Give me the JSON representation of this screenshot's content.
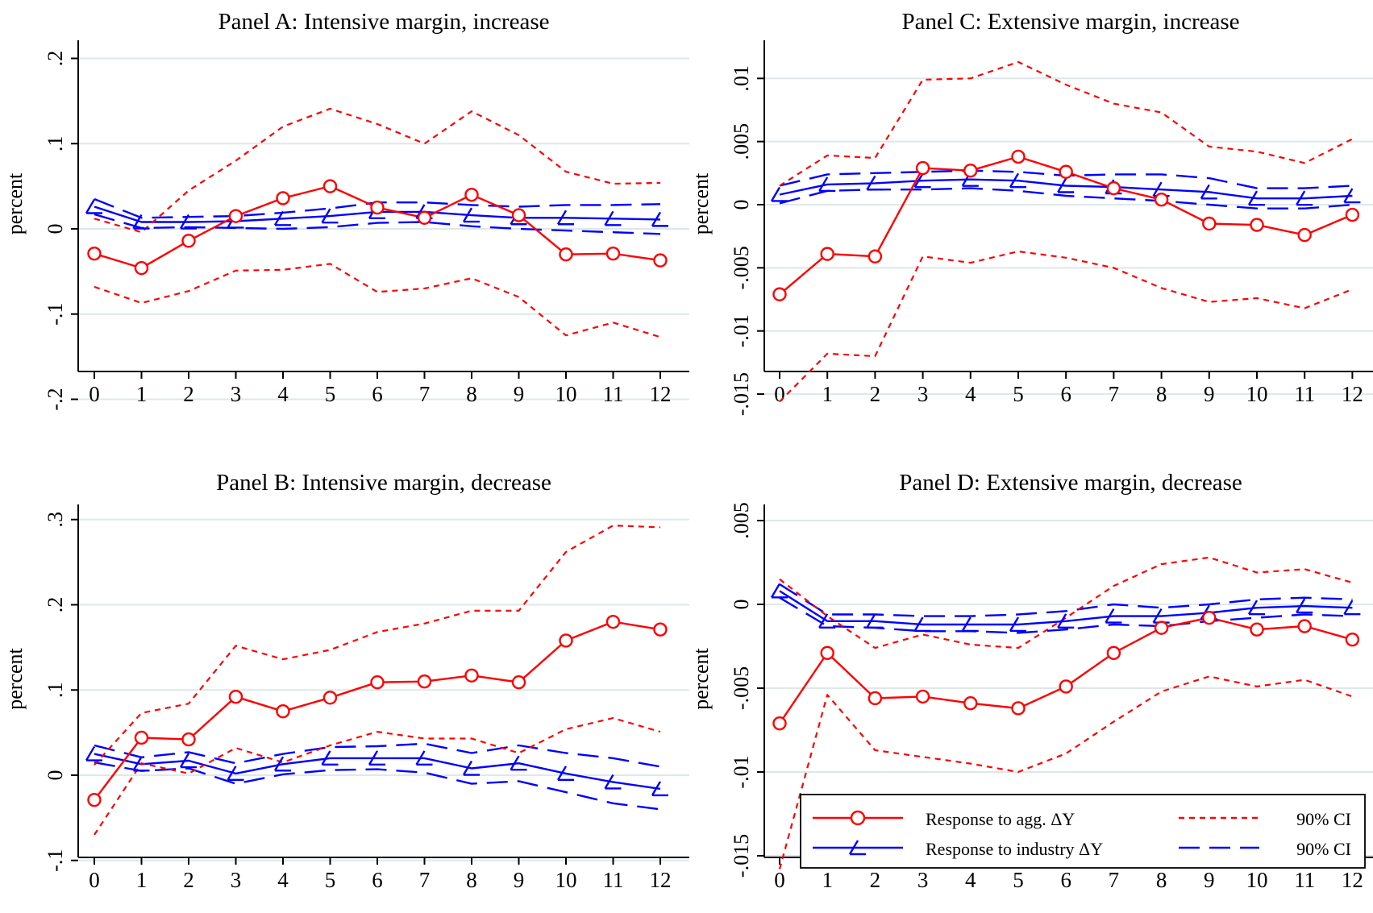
{
  "colors": {
    "agg": "#ff0000",
    "industry": "#0000ff",
    "grid": "#dde8ea",
    "axis": "#000000"
  },
  "legend": {
    "placement": "bottom-right of panel D",
    "items": [
      {
        "label": "Response to agg. ΔY",
        "style": "solid-circle",
        "color": "#ff0000"
      },
      {
        "label": "Response to industry ΔY",
        "style": "solid-triangle",
        "color": "#0000ff"
      },
      {
        "label": "90% CI",
        "style": "short-dash",
        "color": "#ff0000"
      },
      {
        "label": "90% CI",
        "style": "long-dash",
        "color": "#0000ff"
      }
    ]
  },
  "chart_data": [
    {
      "id": "A",
      "type": "line",
      "title": "Panel A: Intensive margin, increase",
      "ylabel": "percent",
      "xlabel": "",
      "x": [
        0,
        1,
        2,
        3,
        4,
        5,
        6,
        7,
        8,
        9,
        10,
        11,
        12
      ],
      "ylim": [
        -0.22,
        0.22
      ],
      "yticks": [
        -0.2,
        -0.1,
        0,
        0.1,
        0.2
      ],
      "ytick_labels": [
        "-.2",
        "-.1",
        "0",
        ".1",
        ".2"
      ],
      "grid": true,
      "series": [
        {
          "name": "Response to agg. ΔY",
          "role": "agg",
          "values": [
            -0.029,
            -0.046,
            -0.014,
            0.015,
            0.036,
            0.05,
            0.025,
            0.013,
            0.04,
            0.016,
            -0.03,
            -0.029,
            -0.037
          ]
        },
        {
          "role": "agg_ci_upper",
          "values": [
            0.012,
            -0.004,
            0.045,
            0.08,
            0.12,
            0.141,
            0.123,
            0.1,
            0.138,
            0.11,
            0.067,
            0.053,
            0.054
          ]
        },
        {
          "role": "agg_ci_lower",
          "values": [
            -0.068,
            -0.087,
            -0.073,
            -0.049,
            -0.048,
            -0.041,
            -0.074,
            -0.07,
            -0.058,
            -0.08,
            -0.125,
            -0.11,
            -0.127
          ]
        },
        {
          "name": "Response to industry ΔY",
          "role": "ind",
          "values": [
            0.026,
            0.008,
            0.008,
            0.009,
            0.012,
            0.015,
            0.02,
            0.02,
            0.016,
            0.013,
            0.013,
            0.012,
            0.011
          ]
        },
        {
          "role": "ind_ci_upper",
          "values": [
            0.035,
            0.013,
            0.014,
            0.015,
            0.019,
            0.024,
            0.031,
            0.031,
            0.028,
            0.026,
            0.028,
            0.028,
            0.029
          ]
        },
        {
          "role": "ind_ci_lower",
          "values": [
            0.017,
            0.001,
            0.002,
            0.001,
            0.0,
            0.002,
            0.007,
            0.008,
            0.003,
            0.0,
            -0.002,
            -0.004,
            -0.006
          ]
        }
      ]
    },
    {
      "id": "B",
      "type": "line",
      "title": "Panel B: Intensive margin, decrease",
      "ylabel": "percent",
      "xlabel": "",
      "x": [
        0,
        1,
        2,
        3,
        4,
        5,
        6,
        7,
        8,
        9,
        10,
        11,
        12
      ],
      "ylim": [
        -0.11,
        0.31
      ],
      "yticks": [
        -0.1,
        0,
        0.1,
        0.2,
        0.3
      ],
      "ytick_labels": [
        "-.1",
        "0",
        ".1",
        ".2",
        ".3"
      ],
      "grid": true,
      "series": [
        {
          "name": "Response to agg. ΔY",
          "role": "agg",
          "values": [
            -0.029,
            0.044,
            0.042,
            0.092,
            0.075,
            0.091,
            0.109,
            0.11,
            0.117,
            0.109,
            0.158,
            0.18,
            0.171
          ]
        },
        {
          "role": "agg_ci_upper",
          "values": [
            0.012,
            0.073,
            0.084,
            0.152,
            0.136,
            0.147,
            0.168,
            0.178,
            0.193,
            0.193,
            0.262,
            0.293,
            0.291
          ]
        },
        {
          "role": "agg_ci_lower",
          "values": [
            -0.07,
            0.014,
            0.002,
            0.032,
            0.015,
            0.035,
            0.051,
            0.043,
            0.043,
            0.026,
            0.054,
            0.067,
            0.051
          ]
        },
        {
          "name": "Response to industry ΔY",
          "role": "ind",
          "values": [
            0.025,
            0.013,
            0.017,
            0.002,
            0.013,
            0.02,
            0.02,
            0.02,
            0.008,
            0.014,
            0.002,
            -0.008,
            -0.016
          ]
        },
        {
          "role": "ind_ci_upper",
          "values": [
            0.035,
            0.021,
            0.027,
            0.014,
            0.025,
            0.033,
            0.034,
            0.037,
            0.026,
            0.035,
            0.026,
            0.02,
            0.01
          ]
        },
        {
          "role": "ind_ci_lower",
          "values": [
            0.015,
            0.005,
            0.008,
            -0.01,
            0.001,
            0.006,
            0.007,
            0.003,
            -0.01,
            -0.007,
            -0.02,
            -0.033,
            -0.04
          ]
        }
      ]
    },
    {
      "id": "C",
      "type": "line",
      "title": "Panel C: Extensive margin, increase",
      "ylabel": "percent",
      "xlabel": "",
      "x": [
        0,
        1,
        2,
        3,
        4,
        5,
        6,
        7,
        8,
        9,
        10,
        11,
        12
      ],
      "ylim": [
        -0.0165,
        0.0125
      ],
      "yticks": [
        -0.015,
        -0.01,
        -0.005,
        0,
        0.005,
        0.01
      ],
      "ytick_labels": [
        "-.015",
        "-.01",
        "-.005",
        "0",
        ".005",
        ".01"
      ],
      "grid": true,
      "series": [
        {
          "name": "Response to agg. ΔY",
          "role": "agg",
          "values": [
            -0.0071,
            -0.0039,
            -0.0041,
            0.0029,
            0.0027,
            0.0038,
            0.0026,
            0.0013,
            0.0004,
            -0.0015,
            -0.0016,
            -0.0024,
            -0.0008
          ]
        },
        {
          "role": "agg_ci_upper",
          "values": [
            0.0015,
            0.0039,
            0.0037,
            0.0099,
            0.01,
            0.0113,
            0.0095,
            0.008,
            0.0073,
            0.0046,
            0.0042,
            0.0033,
            0.0052
          ]
        },
        {
          "role": "agg_ci_lower",
          "values": [
            -0.0156,
            -0.0118,
            -0.012,
            -0.0041,
            -0.0046,
            -0.0037,
            -0.0042,
            -0.005,
            -0.0066,
            -0.0077,
            -0.0074,
            -0.0082,
            -0.0067
          ]
        },
        {
          "name": "Response to industry ΔY",
          "role": "ind",
          "values": [
            0.0008,
            0.0016,
            0.0017,
            0.0019,
            0.002,
            0.0019,
            0.0015,
            0.0014,
            0.0012,
            0.001,
            0.0005,
            0.0005,
            0.0007
          ]
        },
        {
          "role": "ind_ci_upper",
          "values": [
            0.0015,
            0.0024,
            0.0025,
            0.0026,
            0.0027,
            0.0026,
            0.0023,
            0.0024,
            0.0024,
            0.0021,
            0.0013,
            0.0013,
            0.0015
          ]
        },
        {
          "role": "ind_ci_lower",
          "values": [
            0.0001,
            0.0011,
            0.0012,
            0.0012,
            0.0013,
            0.0011,
            0.0007,
            0.0005,
            0.0003,
            0.0,
            -0.0003,
            -0.0003,
            0.0
          ]
        }
      ]
    },
    {
      "id": "D",
      "type": "line",
      "title": "Panel D: Extensive margin, decrease",
      "ylabel": "percent",
      "xlabel": "",
      "x": [
        0,
        1,
        2,
        3,
        4,
        5,
        6,
        7,
        8,
        9,
        10,
        11,
        12
      ],
      "ylim": [
        -0.0163,
        0.0055
      ],
      "yticks": [
        -0.015,
        -0.01,
        -0.005,
        0,
        0.005
      ],
      "ytick_labels": [
        "-.015",
        "-.01",
        "-.005",
        "0",
        ".005"
      ],
      "grid": true,
      "series": [
        {
          "name": "Response to agg. ΔY",
          "role": "agg",
          "values": [
            -0.0071,
            -0.0029,
            -0.0056,
            -0.0055,
            -0.0059,
            -0.0062,
            -0.0049,
            -0.0029,
            -0.0014,
            -0.0008,
            -0.0015,
            -0.0013,
            -0.0021
          ]
        },
        {
          "role": "agg_ci_upper",
          "values": [
            0.0015,
            -0.0007,
            -0.0026,
            -0.0018,
            -0.0024,
            -0.0026,
            -0.0008,
            0.0011,
            0.0024,
            0.0028,
            0.0019,
            0.0021,
            0.0013
          ]
        },
        {
          "role": "agg_ci_lower",
          "values": [
            -0.0158,
            -0.0054,
            -0.0087,
            -0.0091,
            -0.0095,
            -0.01,
            -0.0089,
            -0.007,
            -0.0052,
            -0.0043,
            -0.0049,
            -0.0045,
            -0.0055
          ]
        },
        {
          "name": "Response to industry ΔY",
          "role": "ind",
          "values": [
            0.0008,
            -0.001,
            -0.001,
            -0.0012,
            -0.0012,
            -0.0012,
            -0.001,
            -0.0007,
            -0.0007,
            -0.0005,
            -0.0002,
            -0.0001,
            -0.0002
          ]
        },
        {
          "role": "ind_ci_upper",
          "values": [
            0.0012,
            -0.0006,
            -0.0006,
            -0.0007,
            -0.0007,
            -0.0006,
            -0.0004,
            0.0,
            -0.0002,
            0.0,
            0.0003,
            0.0004,
            0.0003
          ]
        },
        {
          "role": "ind_ci_lower",
          "values": [
            0.0004,
            -0.0013,
            -0.0014,
            -0.0016,
            -0.0016,
            -0.0017,
            -0.0015,
            -0.0012,
            -0.0013,
            -0.001,
            -0.0008,
            -0.0006,
            -0.0007
          ]
        }
      ]
    }
  ]
}
